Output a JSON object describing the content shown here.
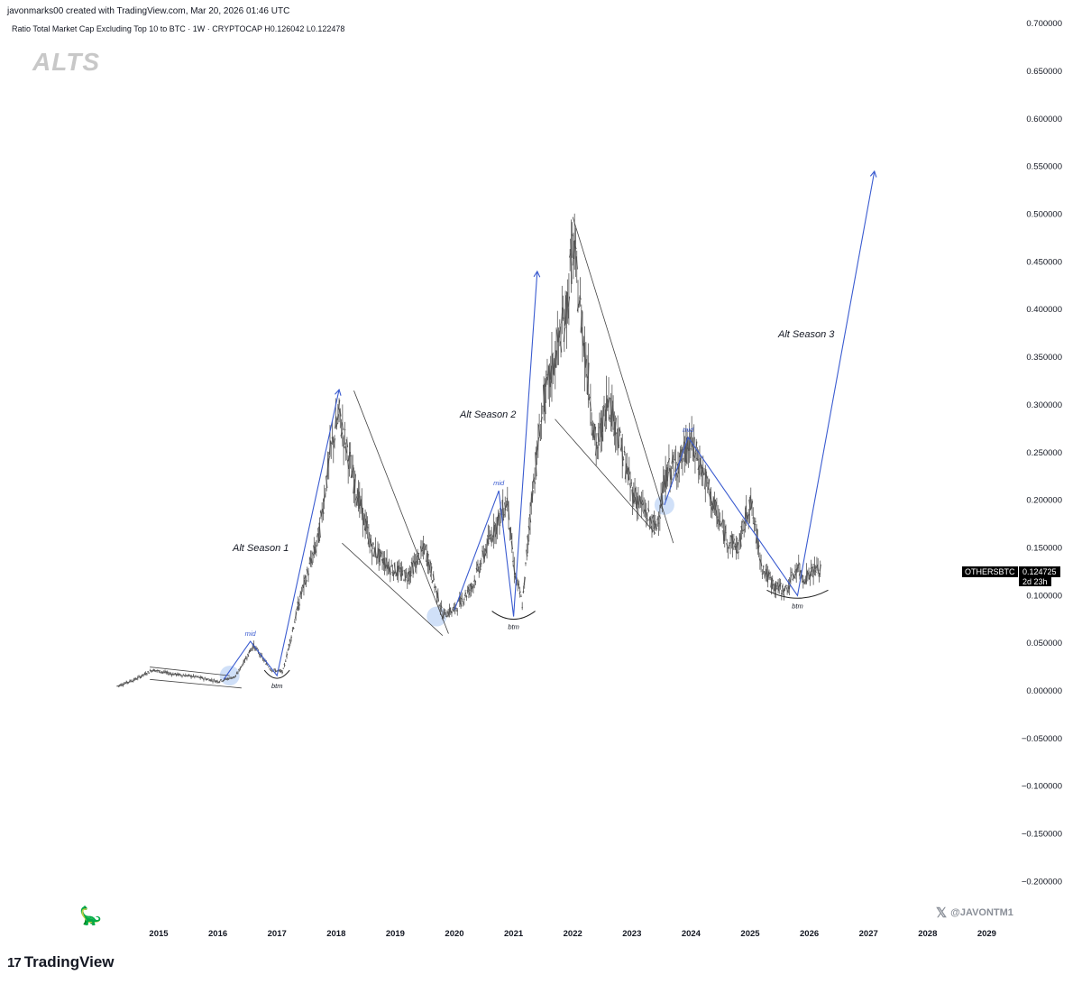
{
  "header": {
    "created_by": "javonmarks00 created with TradingView.com, Mar 20, 2026 01:46 UTC",
    "symbol_line": "Ratio Total Market Cap Excluding Top 10 to BTC · 1W · CRYPTOCAP  H0.126042  L0.122478"
  },
  "watermark": "ALTS",
  "price_tag": {
    "symbol": "OTHERSBTC",
    "price": "0.124725",
    "countdown": "2d 23h"
  },
  "brand": {
    "logo_mark": "17",
    "name": "TradingView"
  },
  "handle": "@JAVONTM1",
  "annotations": {
    "season1": "Alt Season 1",
    "season2": "Alt Season 2",
    "season3": "Alt Season 3",
    "mid": "mid",
    "btm": "btm"
  },
  "colors": {
    "candle": "#555555",
    "blue_line": "#3a5bd0",
    "wedge_line": "#444444",
    "highlight": "#bcd3f5",
    "bg": "#ffffff"
  },
  "chart_data": {
    "type": "line",
    "ylim": [
      -0.22,
      0.71
    ],
    "y_ticks": [
      "0.700000",
      "0.650000",
      "0.600000",
      "0.550000",
      "0.500000",
      "0.450000",
      "0.400000",
      "0.350000",
      "0.300000",
      "0.250000",
      "0.200000",
      "0.150000",
      "0.100000",
      "0.050000",
      "0.000000",
      "−0.050000",
      "−0.100000",
      "−0.150000",
      "−0.200000"
    ],
    "x_ticks": [
      "2015",
      "2016",
      "2017",
      "2018",
      "2019",
      "2020",
      "2021",
      "2022",
      "2023",
      "2024",
      "2025",
      "2026",
      "2027",
      "2028",
      "2029"
    ],
    "series": [
      {
        "x": [
          2014.3,
          2014.6,
          2014.9,
          2015.2,
          2015.6,
          2016.0,
          2016.3,
          2016.6,
          2016.9,
          2017.1,
          2017.4,
          2017.7,
          2017.9,
          2018.05,
          2018.3,
          2018.6,
          2018.9,
          2019.2,
          2019.5,
          2019.8,
          2020.0,
          2020.3,
          2020.6,
          2020.9,
          2021.0,
          2021.15,
          2021.3,
          2021.5,
          2021.7,
          2021.9,
          2022.0,
          2022.2,
          2022.4,
          2022.6,
          2022.8,
          2023.0,
          2023.2,
          2023.4,
          2023.6,
          2023.8,
          2024.0,
          2024.2,
          2024.4,
          2024.6,
          2024.8,
          2025.0,
          2025.2,
          2025.4,
          2025.6,
          2025.8,
          2025.9,
          2026.1,
          2026.2
        ],
        "y": [
          0.005,
          0.012,
          0.022,
          0.018,
          0.015,
          0.01,
          0.015,
          0.048,
          0.022,
          0.02,
          0.1,
          0.16,
          0.25,
          0.29,
          0.22,
          0.15,
          0.13,
          0.12,
          0.15,
          0.08,
          0.085,
          0.11,
          0.16,
          0.2,
          0.13,
          0.09,
          0.2,
          0.3,
          0.35,
          0.4,
          0.47,
          0.36,
          0.25,
          0.31,
          0.26,
          0.21,
          0.19,
          0.17,
          0.23,
          0.24,
          0.26,
          0.23,
          0.19,
          0.16,
          0.15,
          0.2,
          0.13,
          0.11,
          0.105,
          0.13,
          0.118,
          0.128,
          0.1247
        ]
      }
    ]
  }
}
